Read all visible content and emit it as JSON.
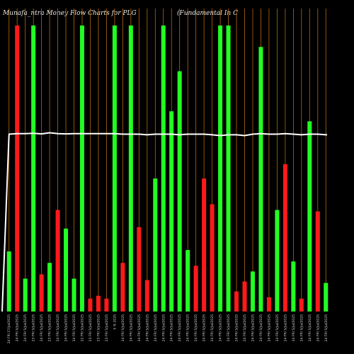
{
  "header": {
    "left": "Munafa_ntra  Money Flow  Charts for PLG",
    "right": "(Fundamental In  C"
  },
  "colors": {
    "background": "#000000",
    "up": "#22ff22",
    "down": "#ff1a1a",
    "grid": "#b4690e",
    "line": "#ffffff"
  },
  "chart_data": {
    "type": "bar",
    "title": "",
    "xlabel": "",
    "ylabel": "",
    "ylim": [
      0,
      100
    ],
    "categories": [
      "24 FRI 27/Jul/2025",
      "24 FRI 5/Jul/2025",
      "24 FRI 5/Jul/2025",
      "23 FRI 5/Jul/2025",
      "24 FRI 5/Jul/2025",
      "23 FRI 5/Jul/2025",
      "24 FRI 5/Jul/2025",
      "24 FRI 5/Jul/2025",
      "24 FRI 5/Jul/2025",
      "22 FRI 5/Jul/2025",
      "23 FRI 5/Jul/2025",
      "23 FRI 5/Jul/2025",
      "23 FRI 5/Jul/2025",
      "0 % 2025",
      "24 FRI 5/Jul/2025",
      "24 FRI 5/Jul/2025",
      "24 FRI 5/Jul/2025",
      "24 FRI 5/Jul/2025",
      "24 FRI 5/Jul/2025",
      "24 FRI 5/Jul/2025",
      "24 FRI 5/Jul/2025",
      "24 FRI 5/Jul/2025",
      "24 FRI 5/Jul/2025",
      "24 FRI 5/Jul/2025",
      "24 FRI 5/Jul/2025",
      "24 FRI 5/Jul/2025",
      "24 FRI 5/Jul/2025",
      "24 FRI 5/Jul/2025",
      "24 FRI 5/Jul/2025",
      "24 FRI 5/Jul/2025",
      "24 FRI 5/Jul/2025",
      "24 FRI 5/Jul/2025",
      "24 FRI 5/Jul/2025",
      "24 FRI 5/Jul/2025",
      "24 FRI 5/Jul/2025",
      "24 FRI 5/Jul/2025",
      "24 FRI 5/Jul/2025",
      "24 FRI 5/Jul/2025",
      "24 FRI 5/Jul/2025",
      "24 FRI 5/Jul/2025"
    ],
    "values": [
      21,
      100,
      11.5,
      100,
      13,
      17,
      35.5,
      29,
      11.5,
      100,
      4.5,
      5.5,
      4.5,
      100,
      17,
      100,
      29.5,
      11,
      46.5,
      100,
      70,
      84,
      21.5,
      16,
      46.5,
      37.5,
      100,
      100,
      7,
      10.5,
      14,
      92.5,
      5,
      35.5,
      51.5,
      17.5,
      4.5,
      66.5,
      35,
      10
    ],
    "bar_colors": [
      "green",
      "red",
      "green",
      "green",
      "red",
      "green",
      "red",
      "green",
      "green",
      "green",
      "red",
      "red",
      "red",
      "green",
      "red",
      "green",
      "red",
      "red",
      "green",
      "green",
      "green",
      "green",
      "green",
      "red",
      "red",
      "red",
      "green",
      "green",
      "red",
      "red",
      "green",
      "green",
      "red",
      "green",
      "red",
      "green",
      "red",
      "green",
      "red",
      "green"
    ],
    "series_line": [
      62,
      62.2,
      62.2,
      62.3,
      62.1,
      62.5,
      62.2,
      62.1,
      62.2,
      62.2,
      62.2,
      62.2,
      62.2,
      62.2,
      62.0,
      62.0,
      62.0,
      61.8,
      62.0,
      62.0,
      62.0,
      61.8,
      62.0,
      62.0,
      62.0,
      61.8,
      61.5,
      61.8,
      61.8,
      61.5,
      62.0,
      62.2,
      62.0,
      62.0,
      62.2,
      62.0,
      61.8,
      62.0,
      62.0,
      61.8
    ],
    "grid": true,
    "legend": "none"
  }
}
